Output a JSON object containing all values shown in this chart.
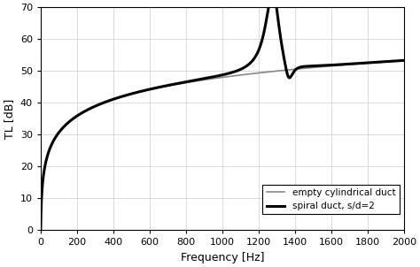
{
  "title": "",
  "xlabel": "Frequency [Hz]",
  "ylabel": "TL [dB]",
  "xlim": [
    0,
    2000
  ],
  "ylim": [
    0,
    70
  ],
  "xticks": [
    0,
    200,
    400,
    600,
    800,
    1000,
    1200,
    1400,
    1600,
    1800,
    2000
  ],
  "yticks": [
    0,
    10,
    20,
    30,
    40,
    50,
    60,
    70
  ],
  "legend": [
    "empty cylindrical duct",
    "spiral duct, s/d=2"
  ],
  "line1_color": "#888888",
  "line1_lw": 1.2,
  "line2_color": "#000000",
  "line2_lw": 2.2,
  "bg_color": "#ffffff",
  "grid_color": "#cccccc",
  "peak_freq": 1280,
  "peak_height": 65,
  "dip_freq": 1360,
  "dip_val": 46
}
